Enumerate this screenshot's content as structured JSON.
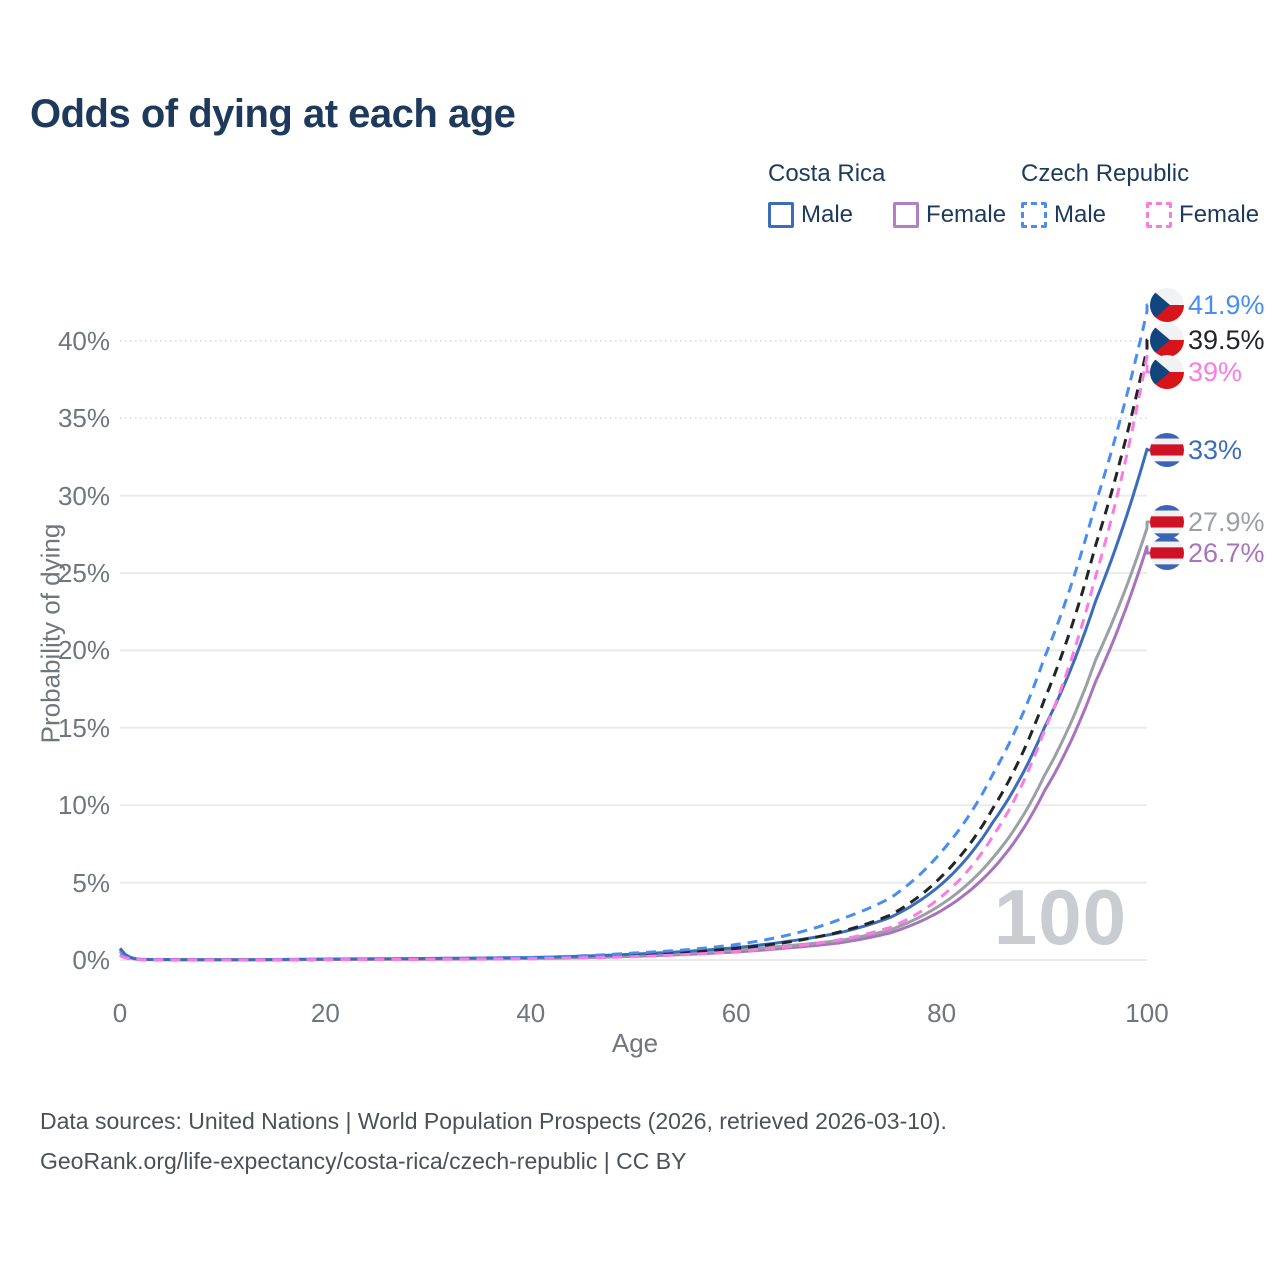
{
  "title": "Odds of dying at each age",
  "legend": {
    "groups": [
      {
        "country": "Costa Rica",
        "line_style": "solid",
        "underline_color": "#a6a6a6",
        "items": [
          {
            "label": "Male",
            "color": "#3b6dbb"
          },
          {
            "label": "Female",
            "color": "#b27fc4"
          }
        ]
      },
      {
        "country": "Czech Republic",
        "line_style": "dashed",
        "underline_color": "#141414",
        "items": [
          {
            "label": "Male",
            "color": "#4a8df2"
          },
          {
            "label": "Female",
            "color": "#fb7ce1"
          }
        ]
      }
    ]
  },
  "axes": {
    "x": {
      "title": "Age",
      "ticks": [
        0,
        20,
        40,
        60,
        80,
        100
      ],
      "range": [
        0,
        100
      ]
    },
    "y": {
      "title": "Probability of dying",
      "tick_labels": [
        "0%",
        "5%",
        "10%",
        "15%",
        "20%",
        "25%",
        "30%",
        "35%",
        "40%"
      ],
      "tick_values": [
        0,
        5,
        10,
        15,
        20,
        25,
        30,
        35,
        40
      ],
      "dotted_gridlines": [
        35,
        40
      ],
      "range": [
        0,
        43
      ]
    }
  },
  "watermark": "100",
  "chart_data": {
    "type": "line",
    "title": "Odds of dying at each age",
    "xlabel": "Age",
    "ylabel": "Probability of dying",
    "x_unit": "age (years)",
    "y_unit": "probability of dying (%)",
    "xlim": [
      0,
      100
    ],
    "ylim": [
      0,
      43
    ],
    "grid": true,
    "legend_position": "top-right",
    "anchor_ages": [
      0,
      2,
      10,
      20,
      30,
      40,
      50,
      55,
      60,
      65,
      70,
      75,
      80,
      85,
      90,
      95,
      100
    ],
    "series": [
      {
        "name": "Czech Republic Male",
        "dash": true,
        "color": "#4a8df2",
        "flag": "czech",
        "end_label": "41.9%",
        "end_value": 41.9,
        "values": [
          0.35,
          0.03,
          0.01,
          0.05,
          0.09,
          0.16,
          0.45,
          0.65,
          1.0,
          1.6,
          2.6,
          4.0,
          7.0,
          12.0,
          19.5,
          29.5,
          41.9
        ]
      },
      {
        "name": "Czech Republic (both sexes)",
        "dash": true,
        "color": "#222528",
        "flag": "czech",
        "end_label": "39.5%",
        "end_value": 39.5,
        "values": [
          0.3,
          0.025,
          0.01,
          0.035,
          0.065,
          0.12,
          0.33,
          0.5,
          0.75,
          1.15,
          1.8,
          2.9,
          5.4,
          9.8,
          16.8,
          26.8,
          39.5
        ]
      },
      {
        "name": "Czech Republic Female",
        "dash": true,
        "color": "#fb7ce1",
        "flag": "czech",
        "end_label": "39%",
        "end_value": 39.0,
        "values": [
          0.28,
          0.02,
          0.008,
          0.02,
          0.04,
          0.08,
          0.22,
          0.35,
          0.55,
          0.85,
          1.3,
          2.1,
          4.1,
          8.0,
          14.8,
          24.8,
          39.0
        ]
      },
      {
        "name": "Costa Rica Male",
        "dash": false,
        "color": "#3b6dbb",
        "flag": "costa_rica",
        "end_label": "33%",
        "end_value": 33.0,
        "values": [
          0.75,
          0.04,
          0.015,
          0.06,
          0.1,
          0.16,
          0.38,
          0.55,
          0.8,
          1.2,
          1.75,
          2.75,
          4.9,
          8.9,
          15.0,
          23.2,
          33.0
        ]
      },
      {
        "name": "Costa Rica (both sexes)",
        "dash": false,
        "color": "#9ba0a6",
        "flag": "costa_rica",
        "end_label": "27.9%",
        "end_value": 27.9,
        "values": [
          0.65,
          0.035,
          0.012,
          0.045,
          0.08,
          0.13,
          0.3,
          0.44,
          0.65,
          0.92,
          1.25,
          1.95,
          3.6,
          6.6,
          11.9,
          19.4,
          27.9
        ]
      },
      {
        "name": "Costa Rica Female",
        "dash": false,
        "color": "#a873bc",
        "flag": "costa_rica",
        "end_label": "26.7%",
        "end_value": 26.7,
        "values": [
          0.55,
          0.03,
          0.01,
          0.03,
          0.055,
          0.1,
          0.24,
          0.36,
          0.52,
          0.78,
          1.1,
          1.75,
          3.2,
          5.9,
          10.9,
          18.0,
          26.7
        ]
      }
    ],
    "flag_colors": {
      "czech": {
        "white": "#f1f2f4",
        "red": "#d7141a",
        "blue": "#11457e"
      },
      "costa_rica": {
        "blue": "#3c64b5",
        "white": "#f1f2f4",
        "red": "#cf1225"
      }
    }
  },
  "footer": {
    "line1": "Data sources: United Nations | World Population Prospects (2026, retrieved 2026-03-10).",
    "line2": "GeoRank.org/life-expectancy/costa-rica/czech-republic | CC BY"
  }
}
